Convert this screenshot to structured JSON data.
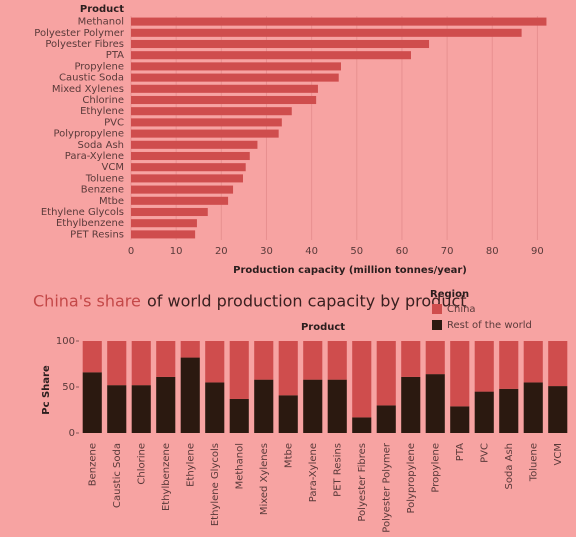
{
  "chart_data": [
    {
      "type": "bar",
      "orientation": "horizontal",
      "category_header": "Product",
      "x_label": "Production capacity (million tonnes/year)",
      "categories": [
        "Methanol",
        "Polyester Polymer",
        "Polyester Fibres",
        "PTA",
        "Propylene",
        "Caustic Soda",
        "Mixed Xylenes",
        "Chlorine",
        "Ethylene",
        "PVC",
        "Polypropylene",
        "Soda Ash",
        "Para-Xylene",
        "VCM",
        "Toluene",
        "Benzene",
        "Mtbe",
        "Ethylene Glycols",
        "Ethylbenzene",
        "PET Resins"
      ],
      "values": [
        92,
        86.5,
        66,
        62,
        46.5,
        46,
        41.4,
        41,
        35.6,
        33.4,
        32.7,
        28,
        26.3,
        25.4,
        24.8,
        22.6,
        21.5,
        17,
        14.6,
        14.2
      ],
      "color": "#cf4d4d",
      "xlim": [
        0,
        95
      ],
      "xticks": [
        0,
        10,
        20,
        30,
        40,
        50,
        60,
        70,
        80,
        90
      ],
      "grid": true
    },
    {
      "type": "stacked_bar",
      "title_parts": [
        "China's share",
        "of world production capacity by product"
      ],
      "category_header": "Product",
      "y_label": "Pc Share",
      "legend_title": "Region",
      "legend": "top-right",
      "categories": [
        "Benzene",
        "Caustic Soda",
        "Chlorine",
        "Ethylbenzene",
        "Ethylene",
        "Ethylene Glycols",
        "Methanol",
        "Mixed Xylenes",
        "Mtbe",
        "Para-Xylene",
        "PET Resins",
        "Polyester Fibres",
        "Polyester Polymer",
        "Polypropylene",
        "Propylene",
        "PTA",
        "PVC",
        "Soda Ash",
        "Toluene",
        "VCM"
      ],
      "series": [
        {
          "name": "China",
          "color": "#cf4d4d",
          "values": [
            34,
            48,
            48,
            39,
            18,
            45,
            63,
            42,
            59,
            42,
            42,
            83,
            70,
            39,
            36,
            71,
            55,
            52,
            45,
            49
          ]
        },
        {
          "name": "Rest of the world",
          "color": "#2b1910",
          "values": [
            66,
            52,
            52,
            61,
            82,
            55,
            37,
            58,
            41,
            58,
            58,
            17,
            30,
            61,
            64,
            29,
            45,
            48,
            55,
            51
          ]
        }
      ],
      "ylim": [
        0,
        100
      ],
      "yticks": [
        0,
        50,
        100
      ],
      "grid": false
    }
  ]
}
